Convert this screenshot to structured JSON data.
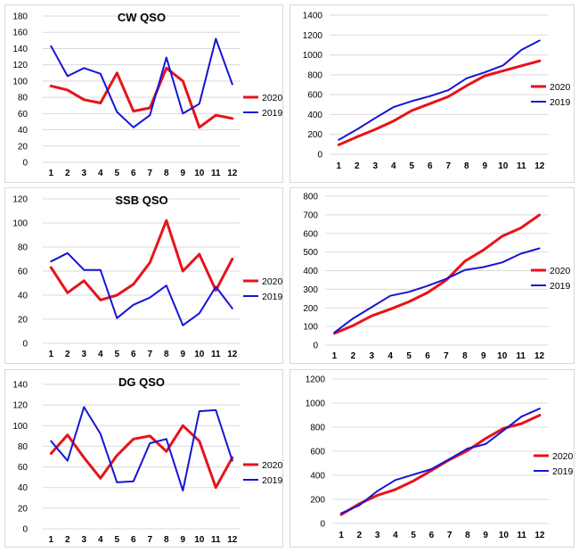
{
  "colors": {
    "series_2020": "#e6131b",
    "series_2019": "#1515d6",
    "grid": "#d9d9d9"
  },
  "chart_data": [
    {
      "id": "cw-monthly",
      "type": "line",
      "title": "CW QSO",
      "x": [
        1,
        2,
        3,
        4,
        5,
        6,
        7,
        8,
        9,
        10,
        11,
        12
      ],
      "ylim": [
        0,
        180
      ],
      "yticks": [
        0,
        20,
        40,
        60,
        80,
        100,
        120,
        140,
        160,
        180
      ],
      "grid": true,
      "legend": "right",
      "series": [
        {
          "name": "2020",
          "values": [
            94,
            89,
            77,
            73,
            110,
            63,
            67,
            116,
            100,
            43,
            58,
            54
          ]
        },
        {
          "name": "2019",
          "values": [
            143,
            106,
            116,
            109,
            62,
            43,
            58,
            129,
            60,
            72,
            152,
            96
          ]
        }
      ]
    },
    {
      "id": "cw-cumulative",
      "type": "line",
      "title": "",
      "x": [
        1,
        2,
        3,
        4,
        5,
        6,
        7,
        8,
        9,
        10,
        11,
        12
      ],
      "ylim": [
        0,
        1400
      ],
      "yticks": [
        0,
        200,
        400,
        600,
        800,
        1000,
        1200,
        1400
      ],
      "grid": true,
      "legend": "right",
      "series": [
        {
          "name": "2020",
          "values": [
            95,
            175,
            250,
            335,
            440,
            510,
            580,
            690,
            790,
            840,
            890,
            940
          ]
        },
        {
          "name": "2019",
          "values": [
            145,
            250,
            365,
            475,
            535,
            585,
            645,
            765,
            825,
            895,
            1050,
            1145
          ]
        }
      ]
    },
    {
      "id": "ssb-monthly",
      "type": "line",
      "title": "SSB QSO",
      "x": [
        1,
        2,
        3,
        4,
        5,
        6,
        7,
        8,
        9,
        10,
        11,
        12
      ],
      "ylim": [
        0,
        120
      ],
      "yticks": [
        0,
        20,
        40,
        60,
        80,
        100,
        120
      ],
      "grid": true,
      "legend": "right",
      "series": [
        {
          "name": "2020",
          "values": [
            63,
            42,
            52,
            36,
            40,
            49,
            67,
            102,
            60,
            74,
            44,
            70
          ]
        },
        {
          "name": "2019",
          "values": [
            68,
            75,
            61,
            61,
            21,
            32,
            38,
            48,
            15,
            25,
            47,
            29
          ]
        }
      ]
    },
    {
      "id": "ssb-cumulative",
      "type": "line",
      "title": "",
      "x": [
        1,
        2,
        3,
        4,
        5,
        6,
        7,
        8,
        9,
        10,
        11,
        12
      ],
      "ylim": [
        0,
        800
      ],
      "yticks": [
        0,
        100,
        200,
        300,
        400,
        500,
        600,
        700,
        800
      ],
      "grid": true,
      "legend": "right",
      "series": [
        {
          "name": "2020",
          "values": [
            63,
            105,
            157,
            193,
            233,
            282,
            349,
            451,
            511,
            585,
            629,
            699
          ]
        },
        {
          "name": "2019",
          "values": [
            68,
            143,
            204,
            265,
            286,
            318,
            356,
            404,
            419,
            444,
            491,
            520
          ]
        }
      ]
    },
    {
      "id": "dg-monthly",
      "type": "line",
      "title": "DG QSO",
      "x": [
        1,
        2,
        3,
        4,
        5,
        6,
        7,
        8,
        9,
        10,
        11,
        12
      ],
      "ylim": [
        0,
        140
      ],
      "yticks": [
        0,
        20,
        40,
        60,
        80,
        100,
        120,
        140
      ],
      "grid": true,
      "legend": "right",
      "series": [
        {
          "name": "2020",
          "values": [
            73,
            91,
            69,
            49,
            71,
            87,
            90,
            75,
            100,
            85,
            40,
            69
          ]
        },
        {
          "name": "2019",
          "values": [
            85,
            66,
            118,
            92,
            45,
            46,
            83,
            87,
            37,
            114,
            115,
            66
          ]
        }
      ]
    },
    {
      "id": "dg-cumulative",
      "type": "line",
      "title": "",
      "x": [
        1,
        2,
        3,
        4,
        5,
        6,
        7,
        8,
        9,
        10,
        11,
        12
      ],
      "ylim": [
        0,
        1200
      ],
      "yticks": [
        0,
        200,
        400,
        600,
        800,
        1000,
        1200
      ],
      "grid": true,
      "legend": "right",
      "series": [
        {
          "name": "2020",
          "values": [
            73,
            164,
            233,
            282,
            353,
            440,
            530,
            605,
            705,
            790,
            830,
            899
          ]
        },
        {
          "name": "2019",
          "values": [
            85,
            151,
            269,
            361,
            406,
            452,
            535,
            622,
            659,
            773,
            888,
            954
          ]
        }
      ]
    }
  ]
}
